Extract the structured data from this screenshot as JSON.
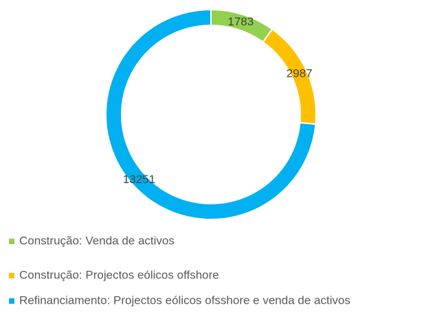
{
  "chart_data": {
    "type": "donut",
    "categories": [
      "Construção: Venda de activos",
      "Construção: Projectos eólicos offshore",
      "Refinanciamento: Projectos eólicos ofsshore e venda de activos"
    ],
    "values": [
      1783,
      2987,
      13251
    ],
    "colors": [
      "#92d050",
      "#ffc000",
      "#00b0f0"
    ],
    "legend": "bottom"
  }
}
